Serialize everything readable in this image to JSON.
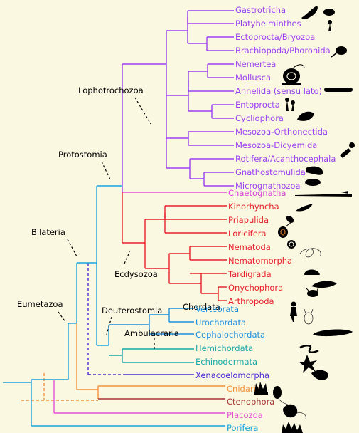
{
  "taxa": [
    {
      "id": "gastrotricha",
      "label": "Gastrotricha",
      "color": "#9b3ff2"
    },
    {
      "id": "platyhelminthes",
      "label": "Platyhelminthes",
      "color": "#9b3ff2"
    },
    {
      "id": "ectoprocta-bryozoa",
      "label": "Ectoprocta/Bryozoa",
      "color": "#9b3ff2"
    },
    {
      "id": "brachiopoda-phoronida",
      "label": "Brachiopoda/Phoronida",
      "color": "#9b3ff2"
    },
    {
      "id": "nemertea",
      "label": "Nemertea",
      "color": "#9b3ff2"
    },
    {
      "id": "mollusca",
      "label": "Mollusca",
      "color": "#9b3ff2"
    },
    {
      "id": "annelida",
      "label": "Annelida (sensu lato)",
      "color": "#9b3ff2"
    },
    {
      "id": "entoprocta",
      "label": "Entoprocta",
      "color": "#9b3ff2"
    },
    {
      "id": "cycliophora",
      "label": "Cycliophora",
      "color": "#9b3ff2"
    },
    {
      "id": "mesozoa-orthonectida",
      "label": "Mesozoa-Orthonectida",
      "color": "#9b3ff2"
    },
    {
      "id": "mesozoa-dicyemida",
      "label": "Mesozoa-Dicyemida",
      "color": "#9b3ff2"
    },
    {
      "id": "rotifera-acanthocephala",
      "label": "Rotifera/Acanthocephala",
      "color": "#9b3ff2"
    },
    {
      "id": "gnathostomulida",
      "label": "Gnathostomulida",
      "color": "#9b3ff2"
    },
    {
      "id": "micrognathozoa",
      "label": "Micrognathozoa",
      "color": "#9b3ff2"
    },
    {
      "id": "chaetognatha",
      "label": "Chaetognatha",
      "color": "#d93fd9"
    },
    {
      "id": "kinorhyncha",
      "label": "Kinorhyncha",
      "color": "#e8202a"
    },
    {
      "id": "priapulida",
      "label": "Priapulida",
      "color": "#e8202a"
    },
    {
      "id": "loricifera",
      "label": "Loricifera",
      "color": "#e8202a"
    },
    {
      "id": "nematoda",
      "label": "Nematoda",
      "color": "#e8202a"
    },
    {
      "id": "nematomorpha",
      "label": "Nematomorpha",
      "color": "#e8202a"
    },
    {
      "id": "tardigrada",
      "label": "Tardigrada",
      "color": "#e8202a"
    },
    {
      "id": "onychophora",
      "label": "Onychophora",
      "color": "#e8202a"
    },
    {
      "id": "arthropoda",
      "label": "Arthropoda",
      "color": "#e8202a"
    },
    {
      "id": "vertebrata",
      "label": "Vertebrata",
      "color": "#1a8fe0"
    },
    {
      "id": "urochordata",
      "label": "Urochordata",
      "color": "#1a8fe0"
    },
    {
      "id": "cephalochordata",
      "label": "Cephalochordata",
      "color": "#1a8fe0"
    },
    {
      "id": "hemichordata",
      "label": "Hemichordata",
      "color": "#18a7a7"
    },
    {
      "id": "echinodermata",
      "label": "Echinodermata",
      "color": "#18a7a7"
    },
    {
      "id": "xenacoelomorpha",
      "label": "Xenacoelomorpha",
      "color": "#4b2fd6"
    },
    {
      "id": "cnidaria",
      "label": "Cnidaria",
      "color": "#f2913a"
    },
    {
      "id": "ctenophora",
      "label": "Ctenophora",
      "color": "#a83232"
    },
    {
      "id": "placozoa",
      "label": "Placozoa",
      "color": "#e451d6"
    },
    {
      "id": "porifera",
      "label": "Porifera",
      "color": "#1aa3e0"
    }
  ],
  "clades": {
    "lophotrochozoa": "Lophotrochozoa",
    "protostomia": "Protostomia",
    "bilateria": "Bilateria",
    "eumetazoa": "Eumetazoa",
    "ecdysozoa": "Ecdysozoa",
    "deuterostomia": "Deuterostomia",
    "chordata": "Chordata",
    "ambulacraria": "Ambulacraria"
  },
  "branch_colors": {
    "lophotrochozoa": "#9b3ff2",
    "ecdysozoa": "#e8202a",
    "protostomia": "#1aa3e0",
    "chordata": "#1a8fe0",
    "ambulacraria": "#18a7a7",
    "xenacoelomorpha": "#4b2fd6",
    "cnidaria": "#f2913a",
    "ctenophora": "#a83232",
    "placozoa": "#e451d6",
    "porifera": "#1aa3e0"
  }
}
